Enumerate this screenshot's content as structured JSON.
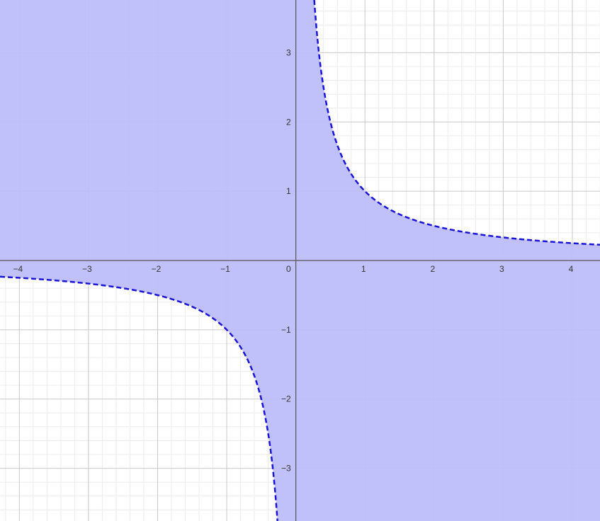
{
  "chart_data": {
    "type": "area",
    "title": "",
    "xlabel": "",
    "ylabel": "",
    "xlim": [
      -4.28,
      4.4
    ],
    "ylim": [
      -3.76,
      3.76
    ],
    "grid": true,
    "minor_grid": true,
    "x_ticks": [
      -4,
      -3,
      -2,
      -1,
      1,
      2,
      3,
      4
    ],
    "y_ticks": [
      3,
      2,
      1,
      -1,
      -2,
      -3
    ],
    "x_tick_labels": [
      "−4",
      "−3",
      "−2",
      "−1",
      "1",
      "2",
      "3",
      "4"
    ],
    "y_tick_labels": [
      "3",
      "2",
      "1",
      "−1",
      "−2",
      "−3"
    ],
    "origin_label": "0",
    "series": [
      {
        "curve": "y = 1/x",
        "line_style": "dashed",
        "x": [
          -4.28,
          -4,
          -3,
          -2,
          -1.5,
          -1,
          -0.75,
          -0.5,
          -0.35,
          -0.27,
          0.27,
          0.35,
          0.5,
          0.75,
          1,
          1.5,
          2,
          3,
          4,
          4.4
        ],
        "y": [
          -0.234,
          -0.25,
          -0.333,
          -0.5,
          -0.667,
          -1,
          -1.333,
          -2,
          -2.857,
          -3.7,
          3.7,
          2.857,
          2,
          1.333,
          1,
          0.667,
          0.5,
          0.333,
          0.25,
          0.227
        ]
      }
    ],
    "shaded_region": "between the two branches, containing the origin",
    "colors": {
      "fill": "#bdbdfb",
      "curve": "#1a14d4",
      "major_grid": "#c8c8c8",
      "minor_grid": "#ececec",
      "axis": "#555555"
    }
  }
}
